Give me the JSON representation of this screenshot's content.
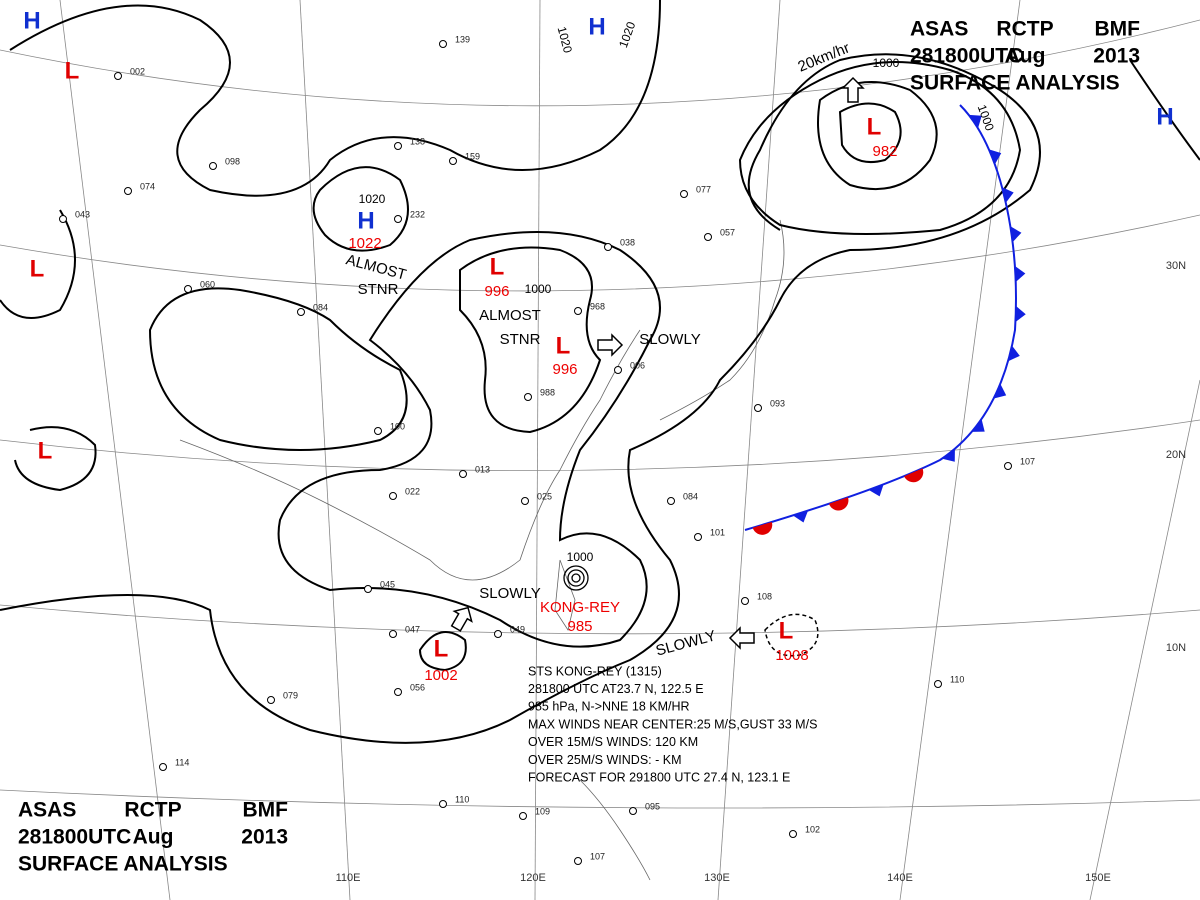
{
  "header_top": {
    "lines": [
      [
        "ASAS",
        "RCTP",
        "BMF"
      ],
      [
        "281800UTC",
        "Aug",
        "2013"
      ],
      [
        "SURFACE  ANALYSIS"
      ]
    ]
  },
  "header_bottom": {
    "lines": [
      [
        "ASAS",
        "RCTP",
        "BMF"
      ],
      [
        "281800UTC",
        "Aug",
        "2013"
      ],
      [
        "SURFACE  ANALYSIS"
      ]
    ]
  },
  "centers": [
    {
      "symbol": "H"
    },
    {
      "symbol": "L"
    },
    {
      "symbol": "H"
    },
    {
      "symbol": "H",
      "pressure": "1022"
    },
    {
      "symbol": "L"
    },
    {
      "symbol": "L",
      "pressure": "996"
    },
    {
      "symbol": "L",
      "pressure": "996"
    },
    {
      "symbol": "L",
      "pressure": "982"
    },
    {
      "symbol": "H"
    },
    {
      "symbol": "L"
    },
    {
      "symbol": "L",
      "pressure": "1002"
    },
    {
      "symbol": "L",
      "pressure": "1008"
    }
  ],
  "typhoon": {
    "name": "KONG-REY",
    "pressure": "985"
  },
  "isobar_labels": [
    "1020",
    "1020",
    "1020",
    "1000",
    "1000",
    "1000",
    "1000"
  ],
  "annotations": [
    "ALMOST",
    "STNR",
    "ALMOST",
    "STNR",
    "SLOWLY",
    "SLOWLY",
    "SLOWLY",
    "20km/hr"
  ],
  "storm_info": [
    "STS KONG-REY  (1315)",
    "281800 UTC  AT23.7 N, 122.5 E",
    "985 hPa, N->NNE  18 KM/HR",
    "MAX WINDS NEAR CENTER:25 M/S,GUST 33 M/S",
    "OVER 15M/S WINDS: 120 KM",
    "OVER 25M/S WINDS: - KM",
    "FORECAST FOR 291800 UTC 27.4 N, 123.1 E"
  ],
  "longitudes": [
    "110E",
    "120E",
    "130E",
    "140E",
    "150E"
  ],
  "latitudes": [
    "30N",
    "20N",
    "10N"
  ],
  "stations": [
    "002",
    "139",
    "232",
    "159",
    "138",
    "098",
    "074",
    "043",
    "084",
    "060",
    "100",
    "013",
    "022",
    "025",
    "045",
    "047",
    "049",
    "079",
    "056",
    "114",
    "110",
    "109",
    "107",
    "095",
    "093",
    "084",
    "101",
    "108",
    "107",
    "102",
    "110",
    "968",
    "988",
    "006",
    "038",
    "057",
    "077"
  ]
}
